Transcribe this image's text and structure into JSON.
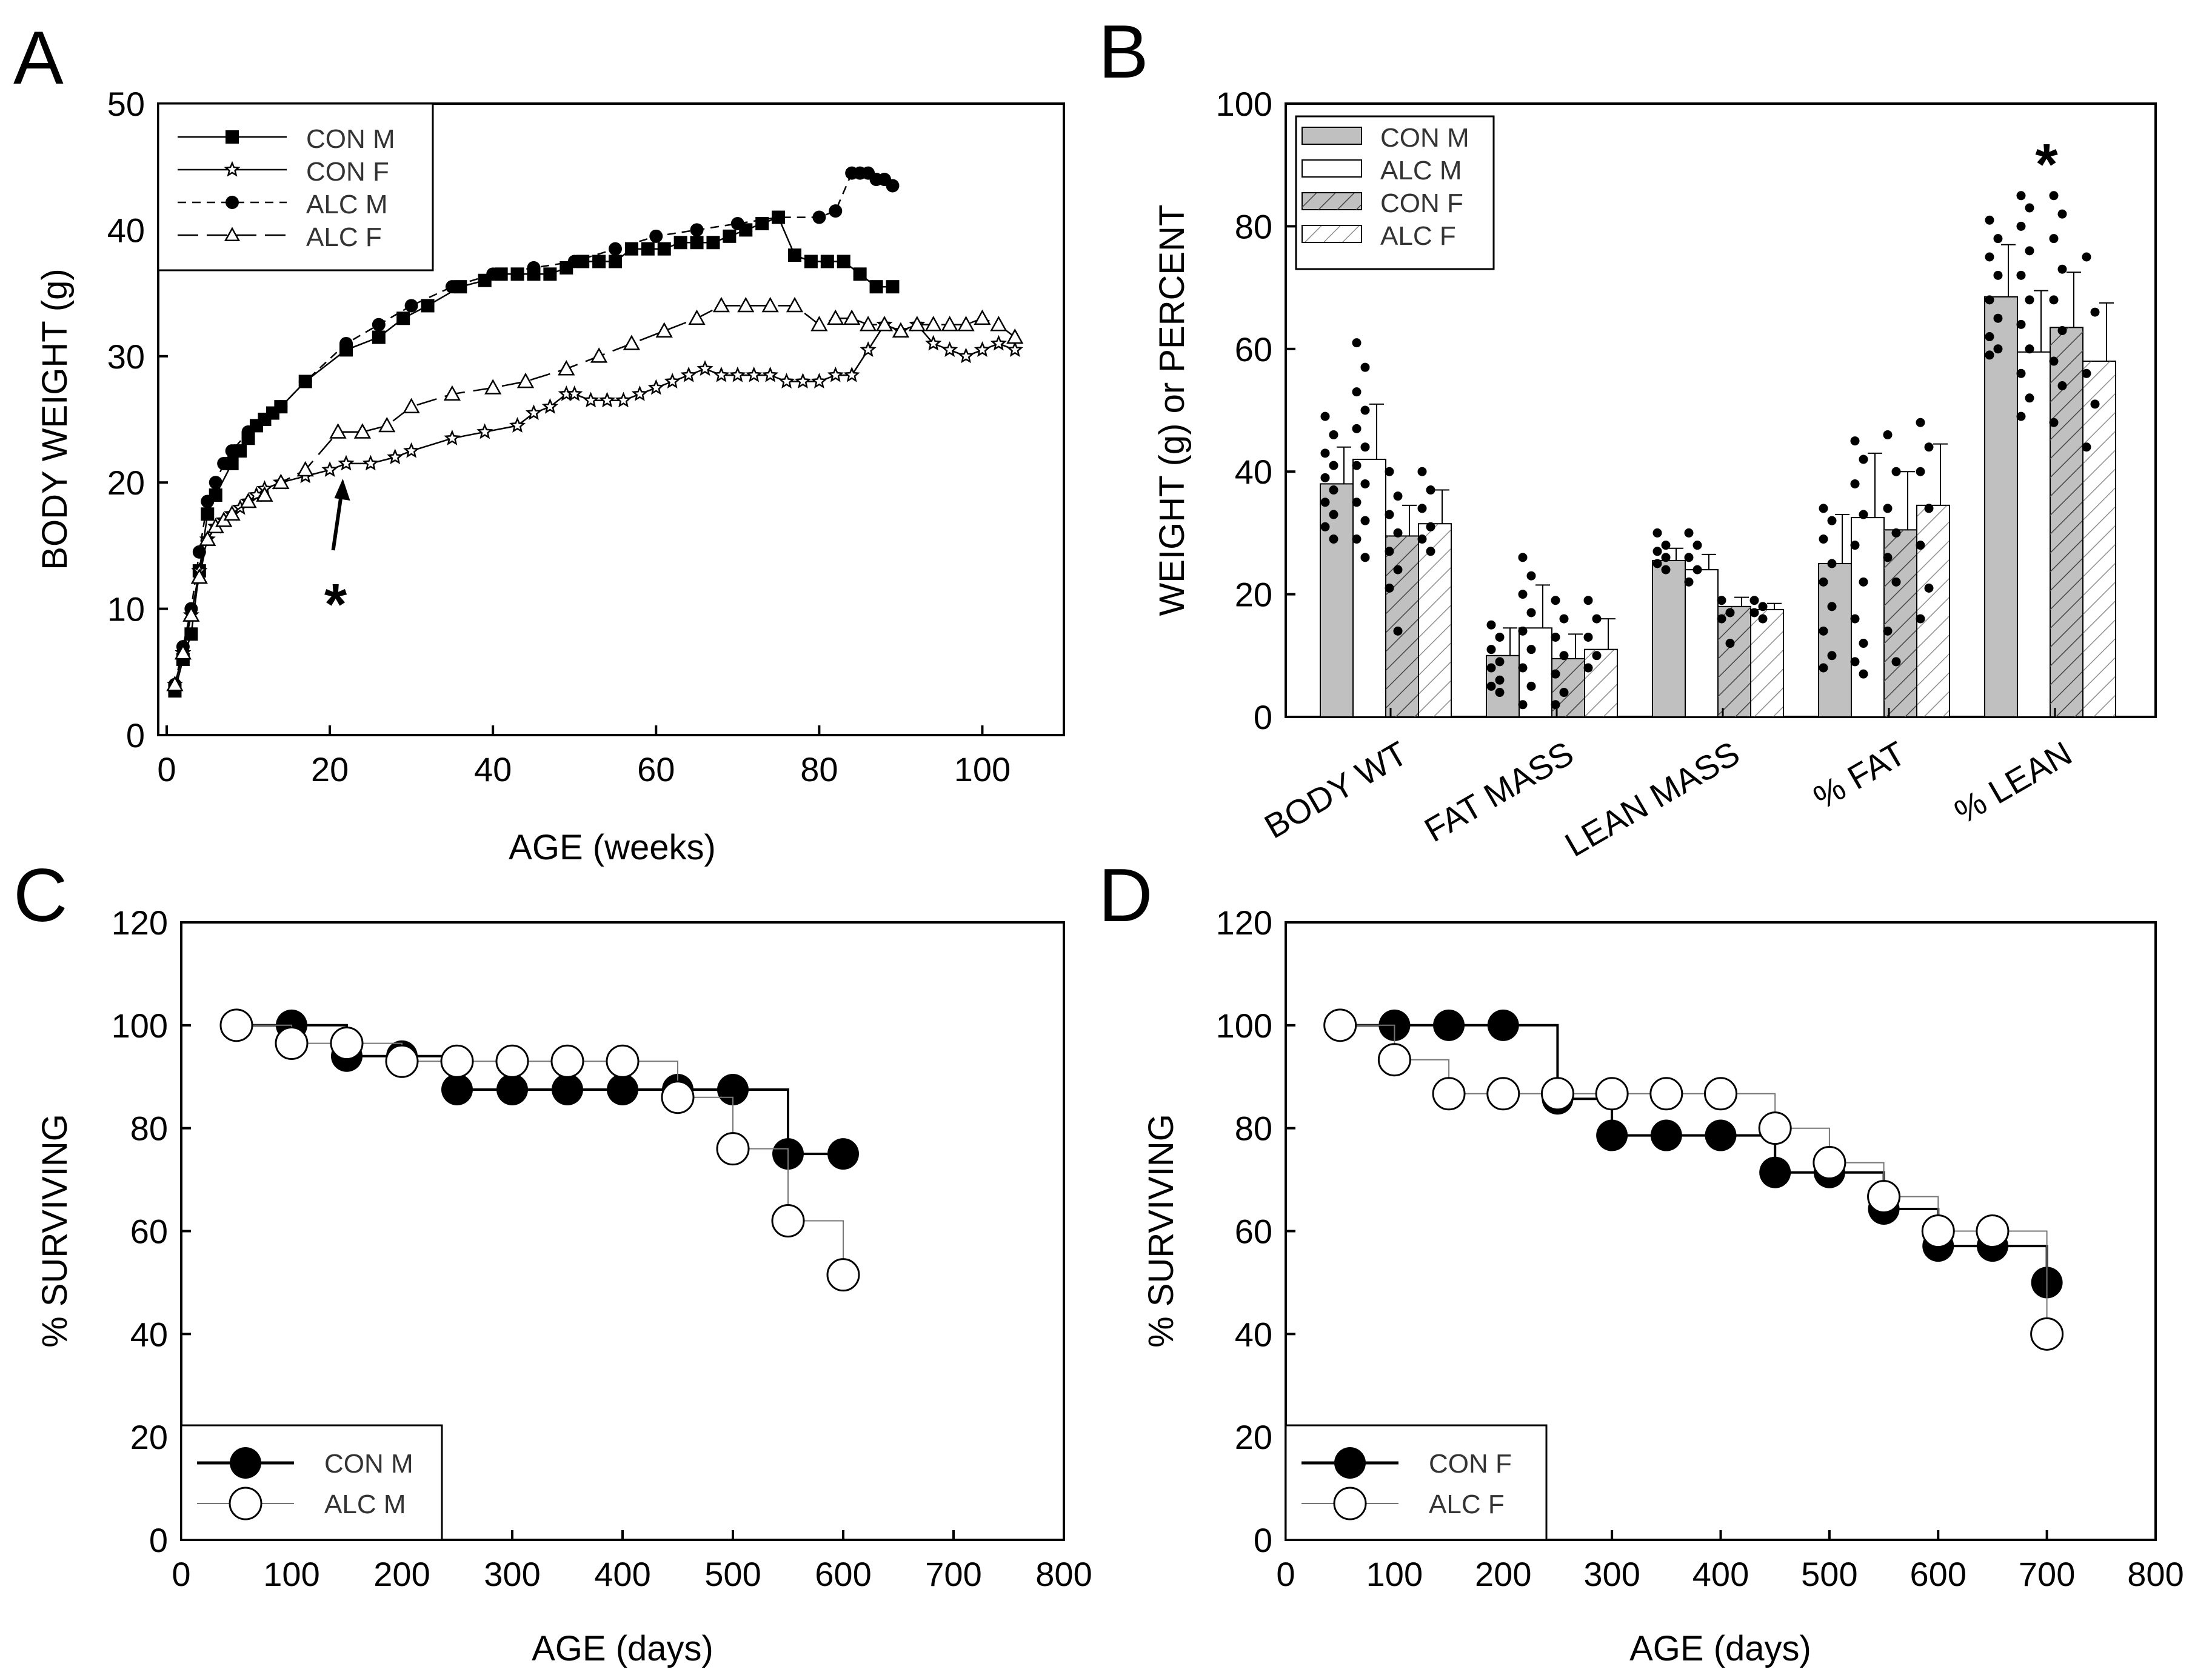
{
  "chart_data": [
    {
      "panel": "A",
      "type": "line",
      "xlabel": "AGE (weeks)",
      "ylabel": "BODY WEIGHT (g)",
      "xlim": [
        0,
        110
      ],
      "ylim": [
        0,
        50
      ],
      "xticks": [
        "0",
        "20",
        "40",
        "60",
        "80",
        "100"
      ],
      "yticks": [
        "0",
        "10",
        "20",
        "30",
        "40",
        "50"
      ],
      "legend_position": "top-left",
      "annotation": "*",
      "annotation_x": 21,
      "series": [
        {
          "name": "CON M",
          "marker": "square",
          "dash": "solid",
          "x": [
            1,
            2,
            3,
            4,
            5,
            6,
            8,
            9,
            10,
            11,
            12,
            13,
            14,
            17,
            22,
            26,
            29,
            32,
            36,
            39,
            41,
            43,
            45,
            47,
            49,
            51,
            53,
            55,
            57,
            59,
            61,
            63,
            65,
            67,
            69,
            71,
            73,
            75,
            77,
            79,
            81,
            83,
            85,
            87,
            89
          ],
          "y": [
            3.5,
            6,
            8,
            13,
            17.5,
            19,
            21.5,
            22.5,
            23.5,
            24.5,
            25,
            25.5,
            26,
            28,
            30.5,
            31.5,
            33,
            34,
            35.5,
            36,
            36.5,
            36.5,
            36.5,
            36.5,
            37,
            37.5,
            37.5,
            37.5,
            38.5,
            38.5,
            38.5,
            39,
            39,
            39,
            39.5,
            40,
            40.5,
            41,
            38,
            37.5,
            37.5,
            37.5,
            36.5,
            35.5,
            35.5
          ]
        },
        {
          "name": "CON F",
          "marker": "star",
          "dash": "solid",
          "x": [
            1,
            2,
            3,
            4,
            5,
            6,
            7,
            8,
            9,
            10,
            11,
            12,
            14,
            17,
            20,
            22,
            25,
            28,
            30,
            35,
            39,
            43,
            45,
            47,
            49,
            50,
            52,
            54,
            56,
            58,
            60,
            62,
            64,
            66,
            68,
            70,
            72,
            74,
            76,
            78,
            80,
            82,
            84,
            86,
            88,
            90,
            92,
            94,
            96,
            98,
            100,
            102,
            104
          ],
          "y": [
            4,
            6.5,
            9.5,
            13,
            15.5,
            16.5,
            17,
            17.5,
            18,
            18.5,
            19,
            19.5,
            20,
            20.5,
            21,
            21.5,
            21.5,
            22,
            22.5,
            23.5,
            24,
            24.5,
            25.5,
            26,
            27,
            27,
            26.5,
            26.5,
            26.5,
            27,
            27.5,
            28,
            28.5,
            29,
            28.5,
            28.5,
            28.5,
            28.5,
            28,
            28,
            28,
            28.5,
            28.5,
            30.5,
            32.5,
            32,
            32.5,
            31,
            30.5,
            30,
            30.5,
            31,
            30.5
          ]
        },
        {
          "name": "ALC M",
          "marker": "circle",
          "dash": "dashed",
          "x": [
            1,
            2,
            3,
            4,
            5,
            6,
            7,
            8,
            10,
            12,
            14,
            17,
            22,
            26,
            30,
            35,
            40,
            45,
            50,
            55,
            60,
            65,
            70,
            75,
            80,
            82,
            84,
            85,
            86,
            87,
            88,
            89
          ],
          "y": [
            4,
            7,
            10,
            14.5,
            18.5,
            20,
            21.5,
            22.5,
            24,
            25,
            26,
            28,
            31,
            32.5,
            34,
            35.5,
            36.5,
            37,
            37.5,
            38.5,
            39.5,
            40,
            40.5,
            41,
            41,
            41.5,
            44.5,
            44.5,
            44.5,
            44,
            44,
            43.5
          ]
        },
        {
          "name": "ALC F",
          "marker": "triangle",
          "dash": "longdash",
          "x": [
            1,
            2,
            3,
            4,
            5,
            6,
            7,
            8,
            10,
            12,
            14,
            17,
            21,
            24,
            27,
            30,
            35,
            40,
            44,
            49,
            53,
            57,
            61,
            65,
            68,
            71,
            74,
            77,
            80,
            82,
            84,
            86,
            88,
            90,
            92,
            94,
            96,
            98,
            100,
            102,
            104
          ],
          "y": [
            4,
            6.5,
            9.5,
            12.5,
            15.5,
            16.5,
            17,
            17.5,
            18.5,
            19,
            20,
            21,
            24,
            24,
            24.5,
            26,
            27,
            27.5,
            28,
            29,
            30,
            31,
            32,
            33,
            34,
            34,
            34,
            34,
            32.5,
            33,
            33,
            32.5,
            32.5,
            32,
            32.5,
            32.5,
            32.5,
            32.5,
            33,
            32.5,
            31.5
          ]
        }
      ]
    },
    {
      "panel": "B",
      "type": "bar",
      "xlabel": "",
      "ylabel": "WEIGHT (g) or PERCENT",
      "ylim": [
        0,
        100
      ],
      "yticks": [
        "0",
        "20",
        "40",
        "60",
        "80",
        "100"
      ],
      "categories": [
        "BODY WT",
        "FAT MASS",
        "LEAN MASS",
        "% FAT",
        "% LEAN"
      ],
      "legend_position": "top-left",
      "annotation": "*",
      "annotation_category": "% LEAN",
      "series": [
        {
          "name": "CON M",
          "fill": "gray",
          "values": [
            38,
            10,
            25.5,
            25,
            68.5
          ],
          "errors": [
            6,
            4.5,
            2,
            8,
            8.5
          ],
          "points": [
            [
              49,
              46,
              43,
              41,
              39,
              37,
              35,
              33,
              31,
              29
            ],
            [
              15,
              13,
              11,
              9,
              8,
              6,
              5,
              4
            ],
            [
              30,
              28,
              27,
              26,
              25,
              24
            ],
            [
              34,
              32,
              29,
              25,
              22,
              18,
              14,
              10,
              8
            ],
            [
              81,
              78,
              75,
              72,
              68,
              65,
              62,
              60,
              59
            ]
          ]
        },
        {
          "name": "ALC M",
          "fill": "white",
          "values": [
            42,
            14.5,
            24,
            32.5,
            59.5
          ],
          "errors": [
            9,
            7,
            2.5,
            10.5,
            10
          ],
          "points": [
            [
              61,
              57,
              53,
              50,
              47,
              44,
              41,
              38,
              35,
              32,
              29,
              26
            ],
            [
              26,
              23,
              20,
              17,
              14,
              11,
              8,
              5,
              2
            ],
            [
              30,
              28,
              26,
              24,
              22
            ],
            [
              45,
              42,
              38,
              33,
              28,
              22,
              16,
              12,
              9,
              7
            ],
            [
              85,
              83,
              80,
              76,
              72,
              68,
              64,
              60,
              56,
              52,
              49
            ]
          ]
        },
        {
          "name": "CON F",
          "fill": "gray-hatched",
          "values": [
            29.5,
            9.5,
            18,
            30.5,
            63.5
          ],
          "errors": [
            5,
            4,
            1.5,
            9.5,
            9
          ],
          "points": [
            [
              40,
              36,
              33,
              30,
              27,
              24,
              21,
              14
            ],
            [
              19,
              16,
              13,
              10,
              7,
              4,
              2
            ],
            [
              19,
              17,
              16,
              12
            ],
            [
              46,
              40,
              34,
              30,
              26,
              22,
              14,
              9
            ],
            [
              85,
              82,
              78,
              73,
              68,
              63,
              58,
              54,
              48
            ]
          ]
        },
        {
          "name": "ALC F",
          "fill": "white-hatched",
          "values": [
            31.5,
            11,
            17.5,
            34.5,
            58
          ],
          "errors": [
            5.5,
            5,
            1,
            10,
            9.5
          ],
          "points": [
            [
              40,
              37,
              34,
              31,
              29,
              27
            ],
            [
              19,
              16,
              13,
              10,
              8
            ],
            [
              19,
              18,
              17,
              16
            ],
            [
              48,
              44,
              40,
              34,
              28,
              21,
              16
            ],
            [
              75,
              66,
              56,
              51,
              44
            ]
          ]
        }
      ]
    },
    {
      "panel": "C",
      "type": "line",
      "step": true,
      "xlabel": "AGE (days)",
      "ylabel": "% SURVIVING",
      "xlim": [
        0,
        800
      ],
      "ylim": [
        0,
        120
      ],
      "xticks": [
        "0",
        "100",
        "200",
        "300",
        "400",
        "500",
        "600",
        "700",
        "800"
      ],
      "yticks": [
        "0",
        "20",
        "40",
        "60",
        "80",
        "100",
        "120"
      ],
      "legend_position": "bottom-left",
      "series": [
        {
          "name": "CON M",
          "marker": "filled-circle",
          "x": [
            100,
            150,
            200,
            250,
            300,
            350,
            400,
            450,
            500,
            550,
            600
          ],
          "y": [
            100,
            94,
            94,
            87.5,
            87.5,
            87.5,
            87.5,
            87.5,
            87.5,
            75,
            75
          ]
        },
        {
          "name": "ALC M",
          "marker": "open-circle",
          "x": [
            50,
            100,
            150,
            200,
            250,
            300,
            350,
            400,
            450,
            500,
            550,
            600
          ],
          "y": [
            100,
            96.5,
            96.5,
            93,
            93,
            93,
            93,
            93,
            86,
            76,
            62,
            51.5
          ]
        }
      ]
    },
    {
      "panel": "D",
      "type": "line",
      "step": true,
      "xlabel": "AGE (days)",
      "ylabel": "% SURVIVING",
      "xlim": [
        0,
        800
      ],
      "ylim": [
        0,
        120
      ],
      "xticks": [
        "0",
        "100",
        "200",
        "300",
        "400",
        "500",
        "600",
        "700",
        "800"
      ],
      "yticks": [
        "0",
        "20",
        "40",
        "60",
        "80",
        "100",
        "120"
      ],
      "legend_position": "bottom-left",
      "series": [
        {
          "name": "CON F",
          "marker": "filled-circle",
          "x": [
            100,
            150,
            200,
            250,
            300,
            350,
            400,
            450,
            500,
            550,
            600,
            650,
            700
          ],
          "y": [
            100,
            100,
            100,
            85.7,
            78.6,
            78.6,
            78.6,
            71.4,
            71.4,
            64.3,
            57.1,
            57.1,
            50
          ]
        },
        {
          "name": "ALC F",
          "marker": "open-circle",
          "x": [
            50,
            100,
            150,
            200,
            250,
            300,
            350,
            400,
            450,
            500,
            550,
            600,
            650,
            700
          ],
          "y": [
            100,
            93.3,
            86.7,
            86.7,
            86.7,
            86.7,
            86.7,
            86.7,
            80,
            73.3,
            66.7,
            60,
            60,
            40
          ]
        }
      ]
    }
  ]
}
